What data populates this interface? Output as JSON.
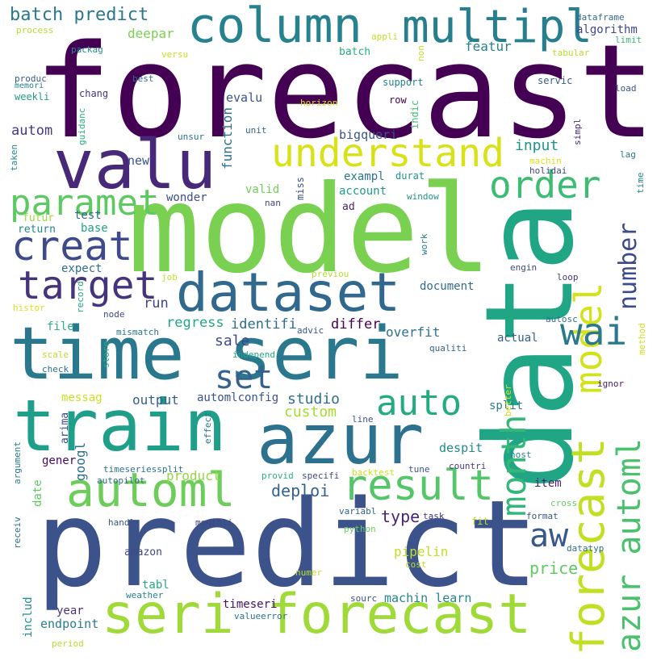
{
  "words": [
    {
      "t": "forecast",
      "c": "#440154"
    },
    {
      "t": "model",
      "c": "#7ad151"
    },
    {
      "t": "data",
      "c": "#21a685"
    },
    {
      "t": "predict",
      "c": "#3b528b"
    },
    {
      "t": "time seri",
      "c": "#2a788e"
    },
    {
      "t": "train",
      "c": "#1f9e89"
    },
    {
      "t": "azur",
      "c": "#2c718e"
    },
    {
      "t": "seri forecast",
      "c": "#a0da39"
    },
    {
      "t": "valu",
      "c": "#482878"
    },
    {
      "t": "column",
      "c": "#26828e"
    },
    {
      "t": "dataset",
      "c": "#31688e"
    },
    {
      "t": "automl",
      "c": "#6ccd5a"
    },
    {
      "t": "forecast",
      "c": "#c2df23"
    },
    {
      "t": "azur automl",
      "c": "#4ac16d"
    },
    {
      "t": "model",
      "c": "#d2e21b"
    },
    {
      "t": "understand",
      "c": "#d8e219"
    },
    {
      "t": "multipl",
      "c": "#277f8e"
    },
    {
      "t": "order",
      "c": "#3fbc73"
    },
    {
      "t": "result",
      "c": "#54c568"
    },
    {
      "t": "creat",
      "c": "#3e4a89"
    },
    {
      "t": "target",
      "c": "#46337e"
    },
    {
      "t": "paramet",
      "c": "#5ec962"
    },
    {
      "t": "wai",
      "c": "#2a788e"
    },
    {
      "t": "auto",
      "c": "#25ab82"
    },
    {
      "t": "set",
      "c": "#34618d"
    },
    {
      "t": "month",
      "c": "#35b779"
    },
    {
      "t": "aw",
      "c": "#38588c"
    },
    {
      "t": "number",
      "c": "#3e4a89"
    },
    {
      "t": "batch predict",
      "c": "#2a788e"
    },
    {
      "t": "deploi",
      "c": "#33638d"
    },
    {
      "t": "studio",
      "c": "#2e6e8e"
    },
    {
      "t": "custom",
      "c": "#a8db34"
    },
    {
      "t": "price",
      "c": "#5ec962"
    },
    {
      "t": "type",
      "c": "#482475"
    },
    {
      "t": "input",
      "c": "#1f948c"
    },
    {
      "t": "sale",
      "c": "#3e4989"
    },
    {
      "t": "autom",
      "c": "#443983"
    },
    {
      "t": "run",
      "c": "#414487"
    },
    {
      "t": "regress",
      "c": "#22a884"
    },
    {
      "t": "identifi",
      "c": "#2f6c8e"
    },
    {
      "t": "differ",
      "c": "#440154"
    },
    {
      "t": "overfit",
      "c": "#2b758e"
    },
    {
      "t": "product",
      "c": "#93d741"
    },
    {
      "t": "result",
      "c": "#54c568"
    },
    {
      "t": "googl",
      "c": "#2e6f8e"
    },
    {
      "t": "output",
      "c": "#355f8d"
    },
    {
      "t": "automlconfig",
      "c": "#3b528b"
    },
    {
      "t": "despit",
      "c": "#23898e"
    },
    {
      "t": "pipelin",
      "c": "#bddf26"
    },
    {
      "t": "machin learn",
      "c": "#25848e"
    },
    {
      "t": "timeseri",
      "c": "#471164"
    },
    {
      "t": "endpoint",
      "c": "#297b8e"
    },
    {
      "t": "year",
      "c": "#46327e"
    },
    {
      "t": "deepar",
      "c": "#7ad151"
    },
    {
      "t": "featur",
      "c": "#27808e"
    },
    {
      "t": "algorithm",
      "c": "#3f4788"
    },
    {
      "t": "batch",
      "c": "#29af7f"
    },
    {
      "t": "evalu",
      "c": "#3b528b"
    },
    {
      "t": "function",
      "c": "#2c718e"
    },
    {
      "t": "new",
      "c": "#3a548c"
    },
    {
      "t": "valid",
      "c": "#6ece58"
    },
    {
      "t": "test",
      "c": "#30698e"
    },
    {
      "t": "base",
      "c": "#20a386"
    },
    {
      "t": "expect",
      "c": "#2d708e"
    },
    {
      "t": "account",
      "c": "#1f9a8a"
    },
    {
      "t": "exampl",
      "c": "#2a768e"
    },
    {
      "t": "wonder",
      "c": "#3d4e8a"
    },
    {
      "t": "futur",
      "c": "#9bd93c"
    },
    {
      "t": "return",
      "c": "#24868e"
    },
    {
      "t": "bigqueri",
      "c": "#3a548c"
    },
    {
      "t": "messag",
      "c": "#c8e020"
    },
    {
      "t": "file",
      "c": "#2ab07f"
    },
    {
      "t": "item",
      "c": "#482173"
    },
    {
      "t": "document",
      "c": "#2f6b8e"
    },
    {
      "t": "actual",
      "c": "#33628d"
    },
    {
      "t": "split",
      "c": "#287d8e"
    },
    {
      "t": "gener",
      "c": "#46085c"
    },
    {
      "t": "arima",
      "c": "#3c4f8a"
    },
    {
      "t": "date",
      "c": "#5ec962"
    },
    {
      "t": "amazon",
      "c": "#3f4889"
    },
    {
      "t": "tabl",
      "c": "#23a983"
    },
    {
      "t": "includ",
      "c": "#218f8d"
    },
    {
      "t": "produc",
      "c": "#375a8c"
    },
    {
      "t": "weekli",
      "c": "#1fa088"
    },
    {
      "t": "chang",
      "c": "#453781"
    },
    {
      "t": "support",
      "c": "#25838e"
    },
    {
      "t": "servic",
      "c": "#355f8d"
    },
    {
      "t": "load",
      "c": "#3b518b"
    },
    {
      "t": "row",
      "c": "#440154"
    },
    {
      "t": "indic",
      "c": "#44bf70"
    },
    {
      "t": "dataframe",
      "c": "#31688e"
    },
    {
      "t": "process",
      "c": "#b5de2b"
    },
    {
      "t": "packag",
      "c": "#228c8d"
    },
    {
      "t": "appli",
      "c": "#c0df25"
    },
    {
      "t": "non",
      "c": "#c5e021"
    },
    {
      "t": "limit",
      "c": "#36b677"
    },
    {
      "t": "tabular",
      "c": "#b8de29"
    },
    {
      "t": "versu",
      "c": "#c8e020"
    },
    {
      "t": "best",
      "c": "#31688e"
    },
    {
      "t": "horizon",
      "c": "#d5e21a"
    },
    {
      "t": "memori",
      "c": "#26818e"
    },
    {
      "t": "guidanc",
      "c": "#29af7f"
    },
    {
      "t": "unit",
      "c": "#33638d"
    },
    {
      "t": "unsur",
      "c": "#2e6e8e"
    },
    {
      "t": "specifi",
      "c": "#3e4989"
    },
    {
      "t": "machin",
      "c": "#dde318"
    },
    {
      "t": "holidai",
      "c": "#3f4788"
    },
    {
      "t": "lag",
      "c": "#2a778e"
    },
    {
      "t": "time",
      "c": "#25848e"
    },
    {
      "t": "simpl",
      "c": "#482878"
    },
    {
      "t": "durat",
      "c": "#20928c"
    },
    {
      "t": "window",
      "c": "#21918c"
    },
    {
      "t": "nan",
      "c": "#414487"
    },
    {
      "t": "ad",
      "c": "#482475"
    },
    {
      "t": "miss",
      "c": "#3b528b"
    },
    {
      "t": "taken",
      "c": "#25858e"
    },
    {
      "t": "work",
      "c": "#297a8e"
    },
    {
      "t": "engin",
      "c": "#3f4889"
    },
    {
      "t": "loop",
      "c": "#443983"
    },
    {
      "t": "job",
      "c": "#c2df23"
    },
    {
      "t": "previou",
      "c": "#b5de2b"
    },
    {
      "t": "record",
      "c": "#21a685"
    },
    {
      "t": "node",
      "c": "#3e4989"
    },
    {
      "t": "histor",
      "c": "#d8e219"
    },
    {
      "t": "autosc",
      "c": "#2e6f8e"
    },
    {
      "t": "method",
      "c": "#d0e11c"
    },
    {
      "t": "mismatch",
      "c": "#2b748e"
    },
    {
      "t": "advic",
      "c": "#39568c"
    },
    {
      "t": "independ",
      "c": "#22a884"
    },
    {
      "t": "scale",
      "c": "#bade28"
    },
    {
      "t": "check",
      "c": "#2d708e"
    },
    {
      "t": "store",
      "c": "#25ac82"
    },
    {
      "t": "qualiti",
      "c": "#32648e"
    },
    {
      "t": "ignor",
      "c": "#481769"
    },
    {
      "t": "better",
      "c": "#d2e21b"
    },
    {
      "t": "effect",
      "c": "#2a788e"
    },
    {
      "t": "line",
      "c": "#3b528b"
    },
    {
      "t": "host",
      "c": "#25848e"
    },
    {
      "t": "argument",
      "c": "#287c8e"
    },
    {
      "t": "timeseriessplit",
      "c": "#2c738e"
    },
    {
      "t": "backtest",
      "c": "#cde11d"
    },
    {
      "t": "tune",
      "c": "#3c4f8a"
    },
    {
      "t": "countri",
      "c": "#443a83"
    },
    {
      "t": "autopilot",
      "c": "#31688e"
    },
    {
      "t": "provid",
      "c": "#2ab07f"
    },
    {
      "t": "cross",
      "c": "#5ec962"
    },
    {
      "t": "receiv",
      "c": "#2d708e"
    },
    {
      "t": "handl",
      "c": "#3a548c"
    },
    {
      "t": "monthli",
      "c": "#404588"
    },
    {
      "t": "variabl",
      "c": "#33628d"
    },
    {
      "t": "task",
      "c": "#46307e"
    },
    {
      "t": "format",
      "c": "#39558c"
    },
    {
      "t": "fit",
      "c": "#b5de2b"
    },
    {
      "t": "python",
      "c": "#6ece58"
    },
    {
      "t": "datatyp",
      "c": "#2c718e"
    },
    {
      "t": "cost",
      "c": "#bddf26"
    },
    {
      "t": "numer",
      "c": "#bade28"
    },
    {
      "t": "weather",
      "c": "#26828e"
    },
    {
      "t": "sourc",
      "c": "#3c4f8a"
    },
    {
      "t": "valueerror",
      "c": "#2b748e"
    },
    {
      "t": "period",
      "c": "#b8de29"
    }
  ]
}
